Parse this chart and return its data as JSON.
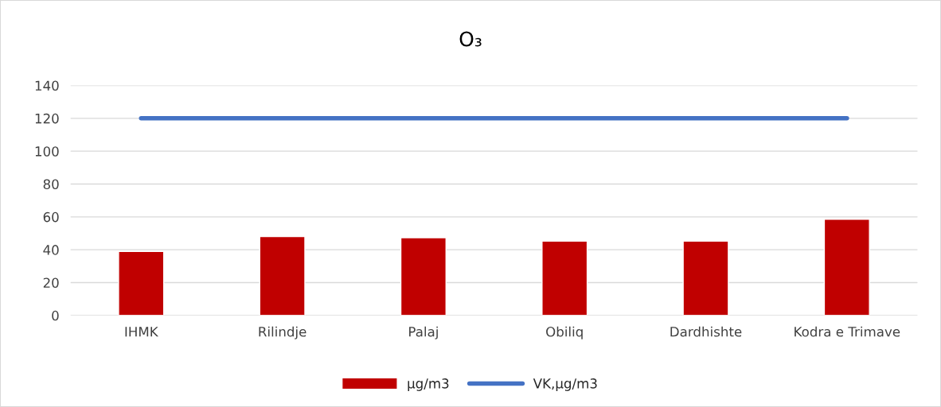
{
  "chart_data": {
    "type": "bar",
    "title": "O₃",
    "categories": [
      "IHMK",
      "Rilindje",
      "Palaj",
      "Obiliq",
      "Dardhishte",
      "Kodra e Trimave"
    ],
    "series": [
      {
        "name": "µg/m3",
        "color": "#c00000",
        "values": [
          39,
          48,
          47.3,
          45.2,
          45.2,
          58.5
        ]
      },
      {
        "name": "VK,µg/m3",
        "type": "line",
        "color": "#4472c4",
        "values": [
          120,
          120,
          120,
          120,
          120,
          120
        ]
      }
    ],
    "ylim": [
      0,
      140
    ],
    "yticks": [
      0,
      20,
      40,
      60,
      80,
      100,
      120,
      140
    ],
    "grid": "y",
    "legend": "bottom"
  }
}
